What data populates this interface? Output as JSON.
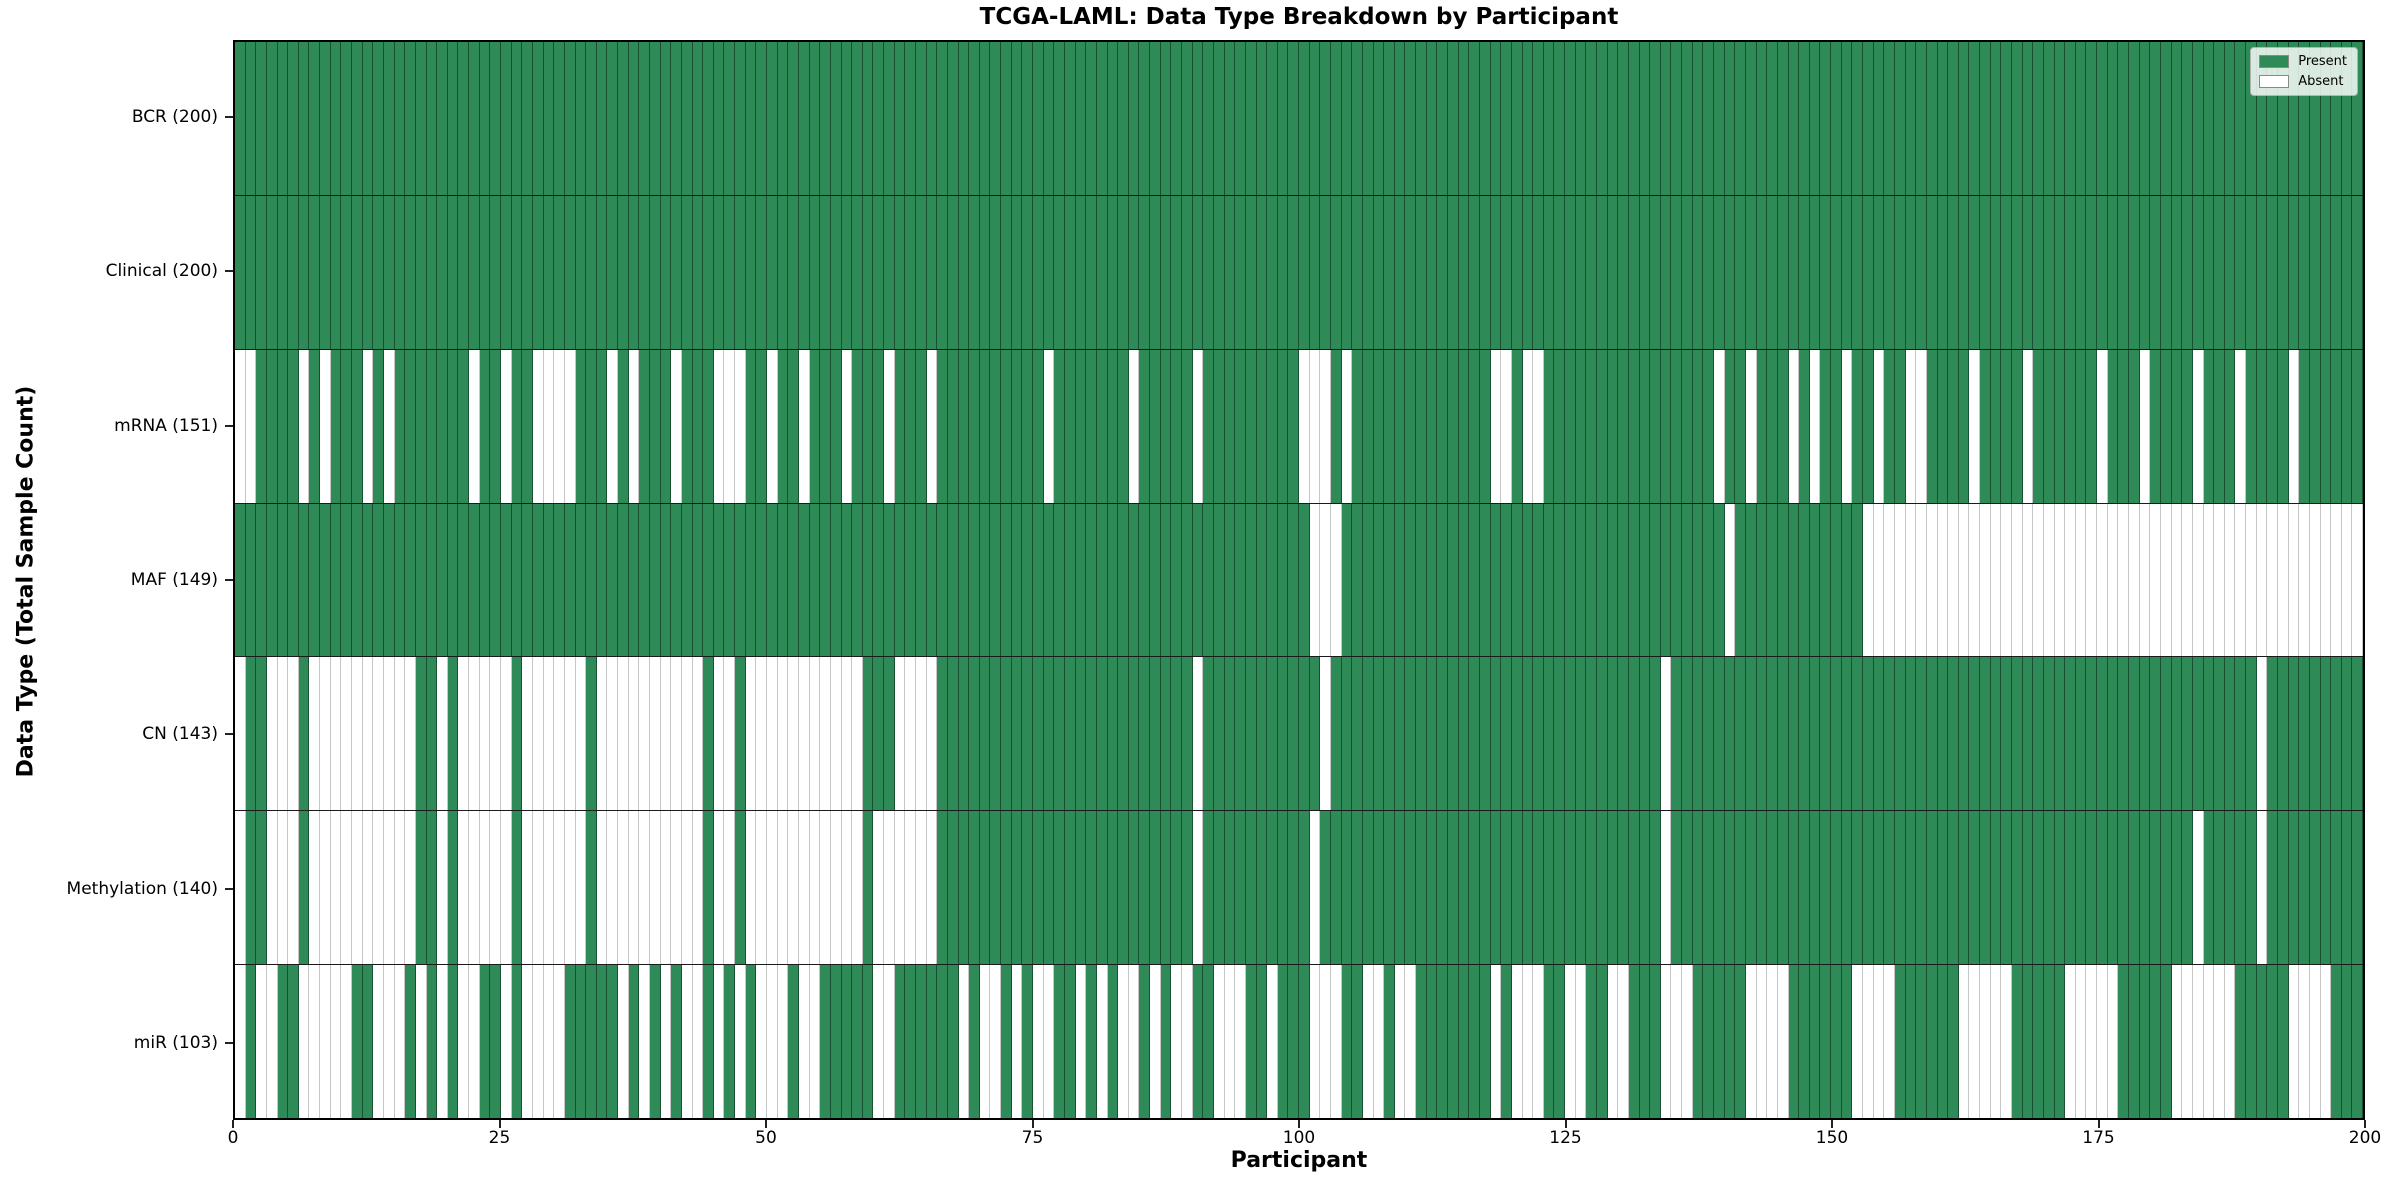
{
  "title": "TCGA-LAML: Data Type Breakdown by Participant",
  "x_axis": {
    "label": "Participant",
    "ticks": [
      0,
      25,
      50,
      75,
      100,
      125,
      150,
      175,
      200
    ],
    "min": 0,
    "max": 200
  },
  "y_axis": {
    "label": "Data Type (Total Sample Count)"
  },
  "legend": {
    "position": "upper right",
    "items": [
      {
        "label": "Present",
        "color": "#2e8b57"
      },
      {
        "label": "Absent",
        "color": "#ffffff"
      }
    ]
  },
  "colors": {
    "present": "#2e8b57",
    "absent": "#ffffff",
    "cell_edge_on_present": "rgba(0,0,0,0.42)",
    "cell_edge_on_absent": "rgba(0,0,0,0.22)",
    "row_separator": "#1a1a1a",
    "plot_border": "#000000"
  },
  "chart_data": {
    "type": "heatmap",
    "title": "TCGA-LAML: Data Type Breakdown by Participant",
    "xlabel": "Participant",
    "ylabel": "Data Type (Total Sample Count)",
    "n_participants": 200,
    "x_range": [
      0,
      200
    ],
    "x_ticks": [
      0,
      25,
      50,
      75,
      100,
      125,
      150,
      175,
      200
    ],
    "legend_position": "upper right",
    "value_encoding": {
      "present": 1,
      "absent": 0
    },
    "note": "Cell (row, participant) is green when data type is present for that participant, white when absent. Absent participant indices (0-199) listed per row.",
    "rows": [
      {
        "label": "BCR (200)",
        "name": "BCR",
        "total_present": 200,
        "absent_participants": []
      },
      {
        "label": "Clinical (200)",
        "name": "Clinical",
        "total_present": 200,
        "absent_participants": []
      },
      {
        "label": "mRNA (151)",
        "name": "mRNA",
        "total_present": 151,
        "absent_participants": [
          0,
          1,
          6,
          8,
          12,
          14,
          22,
          25,
          28,
          29,
          30,
          31,
          35,
          37,
          41,
          45,
          46,
          47,
          50,
          53,
          57,
          61,
          65,
          76,
          84,
          90,
          100,
          101,
          102,
          104,
          118,
          119,
          121,
          122,
          139,
          142,
          146,
          148,
          151,
          154,
          157,
          158,
          163,
          168,
          175,
          179,
          184,
          188,
          193
        ]
      },
      {
        "label": "MAF (149)",
        "name": "MAF",
        "total_present": 149,
        "absent_participants": [
          101,
          102,
          103,
          140,
          153,
          154,
          155,
          156,
          157,
          158,
          159,
          160,
          161,
          162,
          163,
          164,
          165,
          166,
          167,
          168,
          169,
          170,
          171,
          172,
          173,
          174,
          175,
          176,
          177,
          178,
          179,
          180,
          181,
          182,
          183,
          184,
          185,
          186,
          187,
          188,
          189,
          190,
          191,
          192,
          193,
          194,
          195,
          196,
          197,
          198,
          199
        ]
      },
      {
        "label": "CN (143)",
        "name": "CN",
        "total_present": 143,
        "absent_participants": [
          0,
          3,
          4,
          5,
          7,
          8,
          9,
          10,
          11,
          12,
          13,
          14,
          15,
          16,
          19,
          21,
          22,
          23,
          24,
          25,
          27,
          28,
          29,
          30,
          31,
          32,
          34,
          35,
          36,
          37,
          38,
          39,
          40,
          41,
          42,
          43,
          45,
          46,
          48,
          49,
          50,
          51,
          52,
          53,
          54,
          55,
          56,
          57,
          58,
          62,
          63,
          64,
          65,
          90,
          102,
          134,
          190
        ]
      },
      {
        "label": "Methylation (140)",
        "name": "Methylation",
        "total_present": 140,
        "absent_participants": [
          0,
          3,
          4,
          5,
          7,
          8,
          9,
          10,
          11,
          12,
          13,
          14,
          15,
          16,
          19,
          21,
          22,
          23,
          24,
          25,
          27,
          28,
          29,
          30,
          31,
          32,
          34,
          35,
          36,
          37,
          38,
          39,
          40,
          41,
          42,
          43,
          45,
          46,
          48,
          49,
          50,
          51,
          52,
          53,
          54,
          55,
          56,
          57,
          58,
          60,
          61,
          62,
          63,
          64,
          65,
          90,
          101,
          134,
          184,
          190
        ]
      },
      {
        "label": "miR (103)",
        "name": "miR",
        "total_present": 103,
        "absent_participants": [
          0,
          2,
          3,
          6,
          7,
          8,
          9,
          10,
          13,
          14,
          15,
          17,
          19,
          21,
          22,
          25,
          27,
          28,
          29,
          30,
          36,
          38,
          40,
          42,
          43,
          45,
          47,
          49,
          50,
          51,
          53,
          54,
          60,
          61,
          68,
          70,
          71,
          73,
          75,
          76,
          79,
          81,
          83,
          84,
          86,
          88,
          89,
          92,
          93,
          94,
          97,
          101,
          102,
          103,
          106,
          107,
          109,
          110,
          118,
          120,
          121,
          122,
          125,
          126,
          129,
          130,
          134,
          135,
          136,
          142,
          143,
          144,
          145,
          152,
          153,
          154,
          155,
          162,
          163,
          164,
          165,
          166,
          172,
          173,
          174,
          175,
          176,
          182,
          183,
          184,
          185,
          186,
          187,
          193,
          194,
          195,
          196
        ]
      }
    ]
  }
}
